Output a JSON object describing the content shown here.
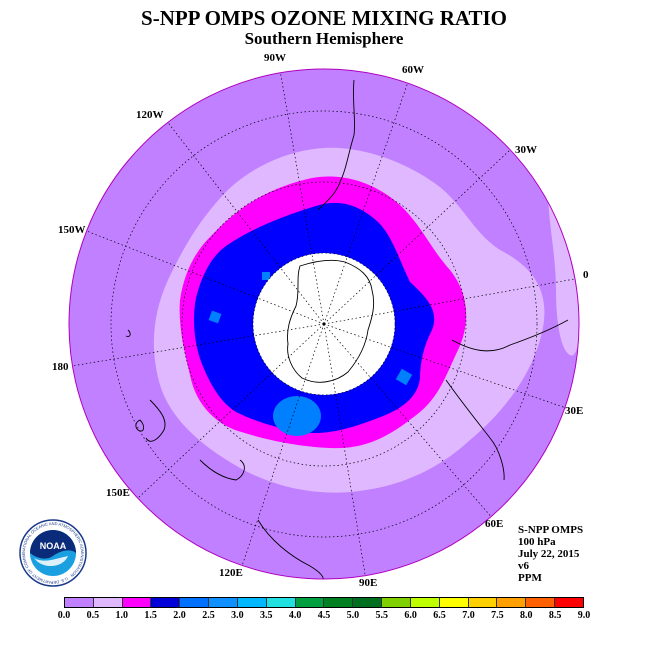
{
  "header": {
    "title": "S-NPP OMPS OZONE MIXING RATIO",
    "subtitle": "Southern Hemisphere"
  },
  "map": {
    "projection": "south-polar-stereographic",
    "longitude_labels": [
      "90W",
      "60W",
      "30W",
      "0",
      "30E",
      "60E",
      "90E",
      "120E",
      "150E",
      "180",
      "150W",
      "120W"
    ],
    "colors": {
      "background_ppm_0_0_5": "#c080ff",
      "ring_0_5_1_0": "#e0b8ff",
      "ring_1_0_1_5": "#ff00ff",
      "ring_1_5_2_0": "#0000ff",
      "patch_2_0_2_5": "#0080ff",
      "pole_nodata": "#ffffff",
      "outline": "#b000c0"
    }
  },
  "info": {
    "lines": [
      "S-NPP OMPS",
      "100 hPa",
      "July 22, 2015",
      "v6",
      "PPM"
    ]
  },
  "colorbar": {
    "colors": [
      "#c080ff",
      "#e0b8ff",
      "#ff00ff",
      "#0000d8",
      "#0070ff",
      "#1090ff",
      "#00b8ff",
      "#20e0e0",
      "#00a040",
      "#008020",
      "#007020",
      "#80d000",
      "#c0ff00",
      "#ffff00",
      "#ffd000",
      "#ffa000",
      "#ff6000",
      "#ff0000",
      "#ff0000",
      "#c02000",
      "#805030"
    ],
    "ticks": [
      "0.0",
      "0.5",
      "1.0",
      "1.5",
      "2.0",
      "2.5",
      "3.0",
      "3.5",
      "4.0",
      "4.5",
      "5.0",
      "5.5",
      "6.0",
      "6.5",
      "7.0",
      "7.5",
      "8.0",
      "8.5",
      "9.0"
    ]
  },
  "logo": {
    "text": "NOAA",
    "ring_text": "NATIONAL OCEANIC AND ATMOSPHERIC ADMINISTRATION · U.S. DEPARTMENT OF COMMERCE"
  }
}
